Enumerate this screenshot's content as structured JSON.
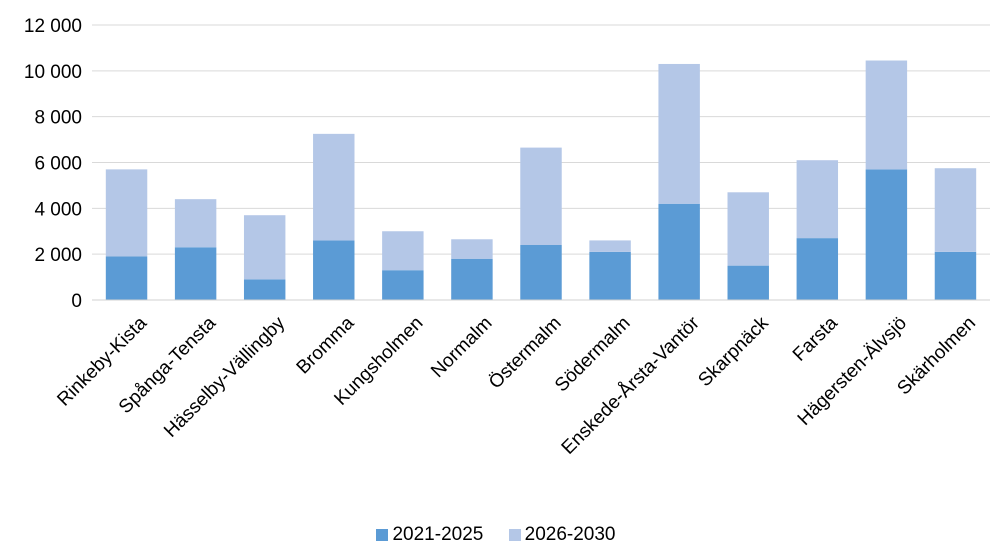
{
  "chart_data": {
    "type": "bar",
    "stacked": true,
    "categories": [
      "Rinkeby-Kista",
      "Spånga-Tensta",
      "Hässelby-Vällingby",
      "Bromma",
      "Kungsholmen",
      "Normalm",
      "Östermalm",
      "Södermalm",
      "Enskede-Årsta-Vantör",
      "Skarpnäck",
      "Farsta",
      "Hägersten-Älvsjö",
      "Skärholmen"
    ],
    "series": [
      {
        "name": "2021-2025",
        "color": "#5b9bd5",
        "values": [
          1900,
          2300,
          900,
          2600,
          1300,
          1800,
          2400,
          2100,
          4200,
          1500,
          2700,
          5700,
          2100
        ]
      },
      {
        "name": "2026-2030",
        "color": "#b4c7e7",
        "values": [
          3800,
          2100,
          2800,
          4650,
          1700,
          850,
          4250,
          500,
          6100,
          3200,
          3400,
          4750,
          3650
        ]
      }
    ],
    "ylim": [
      0,
      12000
    ],
    "yticks": [
      0,
      2000,
      4000,
      6000,
      8000,
      10000,
      12000
    ],
    "ytick_labels": [
      "0",
      "2 000",
      "4 000",
      "6 000",
      "8 000",
      "10 000",
      "12 000"
    ],
    "grid": true,
    "legend_position": "bottom"
  }
}
